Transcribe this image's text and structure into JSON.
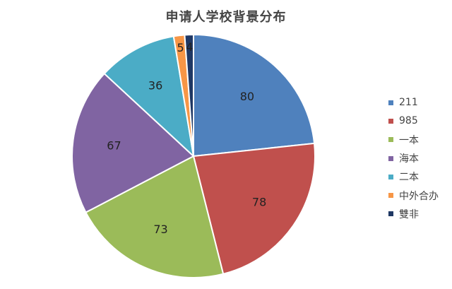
{
  "chart_data": {
    "type": "pie",
    "title": "申请人学校背景分布",
    "categories": [
      "211",
      "985",
      "一本",
      "海本",
      "二本",
      "中外合办",
      "雙非"
    ],
    "values": [
      80,
      78,
      73,
      67,
      36,
      5,
      4
    ],
    "colors": [
      "#4f81bd",
      "#c0504d",
      "#9bbb59",
      "#8064a2",
      "#4bacc6",
      "#f79646",
      "#1f3864"
    ],
    "data_labels": [
      "80",
      "78",
      "73",
      "67",
      "36",
      "5",
      "4"
    ],
    "legend_position": "right"
  }
}
